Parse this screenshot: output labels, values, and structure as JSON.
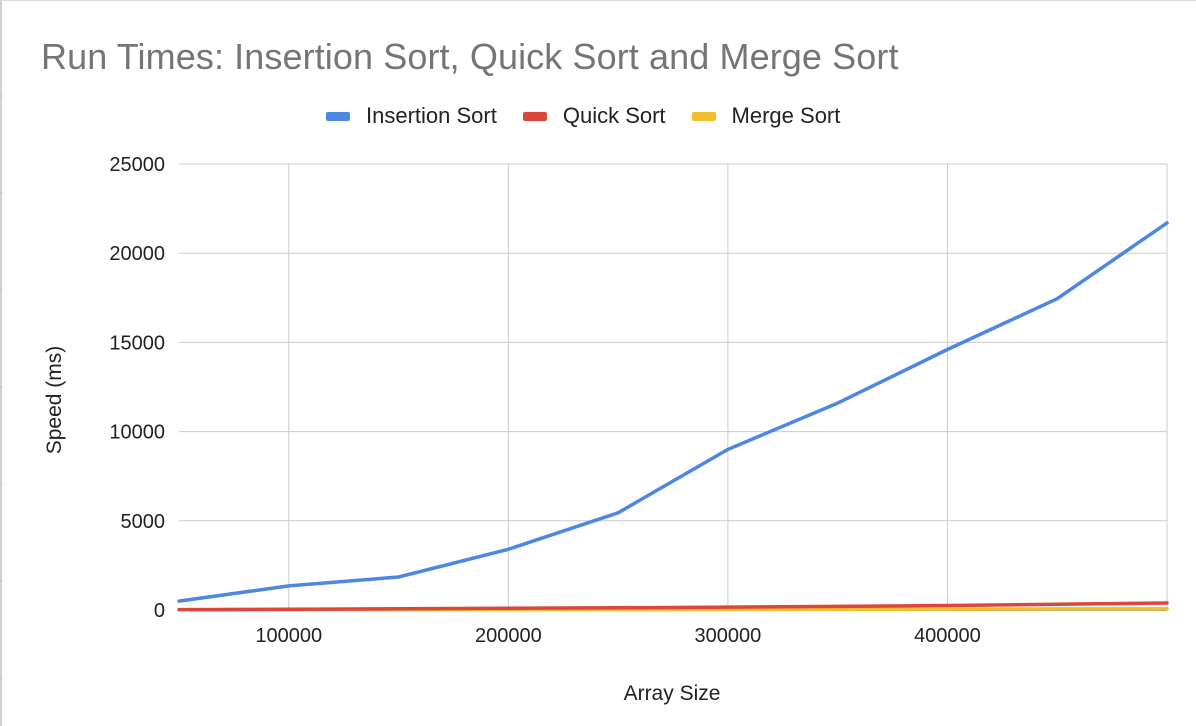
{
  "chart_data": {
    "type": "line",
    "title": "Run Times: Insertion Sort, Quick Sort and Merge Sort",
    "xlabel": "Array Size",
    "ylabel": "Speed (ms)",
    "xlim": [
      50000,
      500000
    ],
    "ylim": [
      0,
      25000
    ],
    "x_ticks": [
      100000,
      200000,
      300000,
      400000
    ],
    "y_ticks": [
      0,
      5000,
      10000,
      15000,
      20000,
      25000
    ],
    "grid": true,
    "legend_position": "top",
    "x": [
      50000,
      100000,
      150000,
      200000,
      250000,
      300000,
      350000,
      400000,
      450000,
      500000
    ],
    "series": [
      {
        "name": "Insertion Sort",
        "color": "#4e86e3",
        "values": [
          500,
          1350,
          1850,
          3400,
          5450,
          9000,
          11600,
          14600,
          17450,
          21700
        ]
      },
      {
        "name": "Quick Sort",
        "color": "#d9483b",
        "values": [
          25,
          45,
          65,
          95,
          125,
          160,
          200,
          250,
          320,
          390
        ]
      },
      {
        "name": "Merge Sort",
        "color": "#f2be2e",
        "values": [
          10,
          15,
          20,
          25,
          30,
          35,
          40,
          50,
          60,
          70
        ]
      }
    ]
  }
}
